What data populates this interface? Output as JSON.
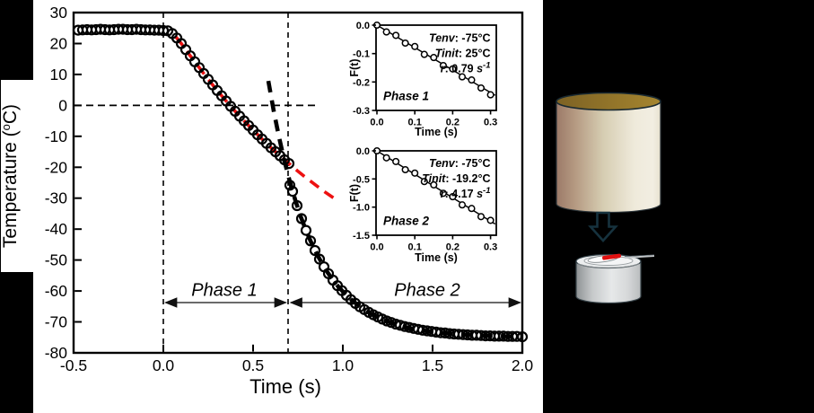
{
  "colors": {
    "background": "#000000",
    "panel": "#ffffff",
    "data_stroke": "#000000",
    "phase1_model_red": "#ed1111",
    "phase2_model_black": "#000000",
    "diagram_outline": "#16323e",
    "sample_red": "#e01010"
  },
  "chart_data": [
    {
      "id": "main",
      "type": "scatter",
      "xlabel": "Time (s)",
      "ylabel": "Temperature (°C)",
      "ylabel_parts": {
        "pre": "Temperature (",
        "sup": "o",
        "post": "C)"
      },
      "xlim": [
        -0.5,
        2.0
      ],
      "ylim": [
        -80,
        30
      ],
      "grid": false,
      "x_tick_values": [
        -0.5,
        0,
        0.5,
        1,
        1.5,
        2
      ],
      "x_tick_labels": [
        "-0.5",
        "0.0",
        "0.5",
        "1.0",
        "1.5",
        "2.0"
      ],
      "y_tick_values": [
        30,
        20,
        10,
        0,
        -10,
        -20,
        -30,
        -40,
        -50,
        -60,
        -70,
        -80
      ],
      "y_tick_labels": [
        "30",
        "20",
        "10",
        "0",
        "-10",
        "-20",
        "-30",
        "-40",
        "-50",
        "-60",
        "-70",
        "-80"
      ],
      "reference_lines": {
        "vertical_t": [
          0,
          0.695
        ],
        "horizontal_T": 0,
        "horizontal_extent": [
          -0.5,
          0.85
        ]
      },
      "phase_labels": [
        "Phase 1",
        "Phase 2"
      ],
      "phase_spans": [
        {
          "from": 0,
          "to": 0.695,
          "y": -63.8
        },
        {
          "from": 0.695,
          "to": 2.0,
          "y": -63.8
        }
      ],
      "series": [
        {
          "name": "measured-temperature",
          "marker": "open-circle",
          "color": "#000000",
          "points": [
            [
              -0.475,
              24.3
            ],
            [
              -0.45,
              24.4
            ],
            [
              -0.425,
              24.5
            ],
            [
              -0.4,
              24.4
            ],
            [
              -0.375,
              24.5
            ],
            [
              -0.35,
              24.6
            ],
            [
              -0.325,
              24.5
            ],
            [
              -0.3,
              24.4
            ],
            [
              -0.275,
              24.5
            ],
            [
              -0.25,
              24.6
            ],
            [
              -0.225,
              24.6
            ],
            [
              -0.2,
              24.5
            ],
            [
              -0.175,
              24.5
            ],
            [
              -0.15,
              24.6
            ],
            [
              -0.125,
              24.5
            ],
            [
              -0.1,
              24.4
            ],
            [
              -0.075,
              24.4
            ],
            [
              -0.05,
              24.3
            ],
            [
              -0.025,
              24.3
            ],
            [
              0,
              24.2
            ],
            [
              0.025,
              24.1
            ],
            [
              0.05,
              23.2
            ],
            [
              0.075,
              21.8
            ],
            [
              0.1,
              20
            ],
            [
              0.125,
              18
            ],
            [
              0.15,
              16
            ],
            [
              0.175,
              14.1
            ],
            [
              0.2,
              12.2
            ],
            [
              0.225,
              10.3
            ],
            [
              0.25,
              8.4
            ],
            [
              0.275,
              6.6
            ],
            [
              0.3,
              4.8
            ],
            [
              0.325,
              3.1
            ],
            [
              0.35,
              1.4
            ],
            [
              0.375,
              -0.3
            ],
            [
              0.4,
              -1.9
            ],
            [
              0.425,
              -3.5
            ],
            [
              0.45,
              -5
            ],
            [
              0.475,
              -6.5
            ],
            [
              0.5,
              -8
            ],
            [
              0.525,
              -9.5
            ],
            [
              0.55,
              -10.9
            ],
            [
              0.575,
              -12.3
            ],
            [
              0.6,
              -13.7
            ],
            [
              0.625,
              -15
            ],
            [
              0.65,
              -16.3
            ],
            [
              0.675,
              -17.6
            ],
            [
              0.7,
              -18.8
            ],
            [
              0.705,
              -25.8
            ],
            [
              0.72,
              -27.8
            ],
            [
              0.745,
              -32.4
            ],
            [
              0.77,
              -36.6
            ],
            [
              0.795,
              -40.4
            ],
            [
              0.82,
              -43.8
            ],
            [
              0.845,
              -46.9
            ],
            [
              0.87,
              -49.7
            ],
            [
              0.895,
              -52.2
            ],
            [
              0.92,
              -54.4
            ],
            [
              0.945,
              -56.5
            ],
            [
              0.97,
              -58.3
            ],
            [
              0.995,
              -59.9
            ],
            [
              1.02,
              -61.4
            ],
            [
              1.045,
              -62.8
            ],
            [
              1.07,
              -64
            ],
            [
              1.095,
              -65.1
            ],
            [
              1.12,
              -66
            ],
            [
              1.145,
              -66.9
            ],
            [
              1.17,
              -67.7
            ],
            [
              1.195,
              -68.4
            ],
            [
              1.22,
              -69.1
            ],
            [
              1.245,
              -69.7
            ],
            [
              1.27,
              -70.2
            ],
            [
              1.295,
              -70.7
            ],
            [
              1.32,
              -71.1
            ],
            [
              1.345,
              -71.5
            ],
            [
              1.37,
              -71.8
            ],
            [
              1.395,
              -72.1
            ],
            [
              1.42,
              -72.4
            ],
            [
              1.445,
              -72.7
            ],
            [
              1.47,
              -72.9
            ],
            [
              1.495,
              -73.1
            ],
            [
              1.52,
              -73.3
            ],
            [
              1.545,
              -73.5
            ],
            [
              1.57,
              -73.6
            ],
            [
              1.595,
              -73.8
            ],
            [
              1.62,
              -73.9
            ],
            [
              1.645,
              -74
            ],
            [
              1.67,
              -74.1
            ],
            [
              1.695,
              -74.2
            ],
            [
              1.72,
              -74.3
            ],
            [
              1.745,
              -74.3
            ],
            [
              1.77,
              -74.4
            ],
            [
              1.795,
              -74.5
            ],
            [
              1.82,
              -74.5
            ],
            [
              1.845,
              -74.6
            ],
            [
              1.87,
              -74.6
            ],
            [
              1.895,
              -74.6
            ],
            [
              1.92,
              -74.7
            ],
            [
              1.945,
              -74.7
            ],
            [
              1.97,
              -74.7
            ],
            [
              2,
              -74.8
            ]
          ]
        },
        {
          "name": "phase1-model-extrapolation",
          "style": "dashed",
          "color": "#ed1111",
          "points": [
            [
              0.07,
              22.1
            ],
            [
              0.1,
              20
            ],
            [
              0.15,
              16
            ],
            [
              0.2,
              12.2
            ],
            [
              0.25,
              8.4
            ],
            [
              0.3,
              4.8
            ],
            [
              0.35,
              1.4
            ],
            [
              0.4,
              -1.9
            ],
            [
              0.45,
              -5
            ],
            [
              0.5,
              -8
            ],
            [
              0.55,
              -10.9
            ],
            [
              0.6,
              -13.7
            ],
            [
              0.65,
              -16.3
            ],
            [
              0.7,
              -18.8
            ],
            [
              0.75,
              -21.3
            ],
            [
              0.8,
              -23.6
            ],
            [
              0.85,
              -25.8
            ],
            [
              0.9,
              -28
            ],
            [
              0.95,
              -30
            ]
          ]
        },
        {
          "name": "phase2-model-extrapolation",
          "style": "dashed",
          "color": "#000000",
          "points": [
            [
              0.585,
              7.9
            ],
            [
              0.615,
              -1.8
            ],
            [
              0.645,
              -10.4
            ],
            [
              0.675,
              -18
            ],
            [
              0.705,
              -24.7
            ],
            [
              0.735,
              -30.6
            ],
            [
              0.765,
              -35.9
            ],
            [
              0.795,
              -40.4
            ],
            [
              0.825,
              -44.5
            ],
            [
              0.855,
              -48
            ],
            [
              0.885,
              -51.2
            ],
            [
              0.915,
              -54
            ],
            [
              0.945,
              -56.5
            ],
            [
              0.975,
              -58.6
            ],
            [
              1.005,
              -60.5
            ],
            [
              1.05,
              -63
            ],
            [
              1.1,
              -65.2
            ],
            [
              1.15,
              -67.1
            ],
            [
              1.2,
              -68.6
            ],
            [
              1.25,
              -69.8
            ],
            [
              1.3,
              -70.9
            ],
            [
              1.35,
              -71.7
            ],
            [
              1.4,
              -72.3
            ],
            [
              1.45,
              -72.8
            ],
            [
              1.5,
              -73.2
            ],
            [
              1.55,
              -73.5
            ],
            [
              1.6,
              -73.8
            ],
            [
              1.65,
              -74
            ],
            [
              1.7,
              -74.2
            ],
            [
              1.75,
              -74.35
            ],
            [
              1.8,
              -74.45
            ],
            [
              1.85,
              -74.55
            ],
            [
              1.9,
              -74.65
            ],
            [
              1.95,
              -74.7
            ],
            [
              2,
              -74.77
            ]
          ]
        }
      ]
    },
    {
      "id": "inset-phase1",
      "type": "scatter",
      "xlabel": "Time (s)",
      "ylabel": "F(t)",
      "phase_label": "Phase 1",
      "xlim": [
        0,
        0.315
      ],
      "ylim": [
        -0.3,
        0
      ],
      "x_tick_values": [
        0,
        0.1,
        0.2,
        0.3
      ],
      "x_tick_labels": [
        "0.0",
        "0.1",
        "0.2",
        "0.3"
      ],
      "y_tick_values": [
        0,
        -0.1,
        -0.2,
        -0.3
      ],
      "y_tick_labels": [
        "0.0",
        "-0.1",
        "-0.2",
        "-0.3"
      ],
      "annotations": [
        {
          "label": "Tenv",
          "value": "-75°C"
        },
        {
          "label": "Tinit",
          "value": " 25°C"
        },
        {
          "label": "r",
          "value": "0.79",
          "unit": " s",
          "sup": "-1"
        }
      ],
      "fit_line": [
        [
          0,
          0
        ],
        [
          0.312,
          -0.2465
        ]
      ],
      "points": [
        [
          0,
          0
        ],
        [
          0.025,
          -0.024
        ],
        [
          0.05,
          -0.036
        ],
        [
          0.075,
          -0.063
        ],
        [
          0.1,
          -0.075
        ],
        [
          0.125,
          -0.103
        ],
        [
          0.15,
          -0.114
        ],
        [
          0.175,
          -0.142
        ],
        [
          0.2,
          -0.154
        ],
        [
          0.225,
          -0.182
        ],
        [
          0.25,
          -0.193
        ],
        [
          0.275,
          -0.221
        ],
        [
          0.3,
          -0.245
        ]
      ]
    },
    {
      "id": "inset-phase2",
      "type": "scatter",
      "xlabel": "Time (s)",
      "ylabel": "F(t)",
      "phase_label": "Phase 2",
      "xlim": [
        0,
        0.315
      ],
      "ylim": [
        -1.5,
        0
      ],
      "x_tick_values": [
        0,
        0.1,
        0.2,
        0.3
      ],
      "x_tick_labels": [
        "0.0",
        "0.1",
        "0.2",
        "0.3"
      ],
      "y_tick_values": [
        0,
        -0.5,
        -1,
        -1.5
      ],
      "y_tick_labels": [
        "0.0",
        "-0.5",
        "-1.0",
        "-1.5"
      ],
      "annotations": [
        {
          "label": "Tenv",
          "value": "-75°C"
        },
        {
          "label": "Tinit",
          "value": "-19.2°C"
        },
        {
          "label": "r",
          "value": "4.17",
          "unit": " s",
          "sup": "-1"
        }
      ],
      "fit_line": [
        [
          0,
          0
        ],
        [
          0.312,
          -1.301
        ]
      ],
      "points": [
        [
          0,
          0
        ],
        [
          0.025,
          -0.125
        ],
        [
          0.05,
          -0.19
        ],
        [
          0.075,
          -0.335
        ],
        [
          0.1,
          -0.395
        ],
        [
          0.125,
          -0.545
        ],
        [
          0.15,
          -0.605
        ],
        [
          0.175,
          -0.755
        ],
        [
          0.2,
          -0.815
        ],
        [
          0.225,
          -0.96
        ],
        [
          0.25,
          -1.025
        ],
        [
          0.275,
          -1.17
        ],
        [
          0.3,
          -1.235
        ]
      ]
    }
  ],
  "diagram": {
    "large_cylinder": {
      "body_gradient": [
        [
          0,
          "#9c7a68"
        ],
        [
          0.18,
          "#b59a82"
        ],
        [
          0.45,
          "#d6cdb2"
        ],
        [
          0.75,
          "#efeadb"
        ],
        [
          0.93,
          "#f2eee2"
        ],
        [
          1,
          "#e7e1cf"
        ]
      ],
      "top_gradient": [
        [
          0,
          "#7d6224"
        ],
        [
          1,
          "#a5852f"
        ]
      ]
    },
    "arrow": {
      "fill": "#000000",
      "outline": "#16323e"
    },
    "small_cylinder": {
      "body_gradient": [
        [
          0,
          "#8e9294"
        ],
        [
          0.25,
          "#c6c9ca"
        ],
        [
          0.55,
          "#e6e8e9"
        ],
        [
          0.8,
          "#d6d8d9"
        ],
        [
          1,
          "#b9bcbe"
        ]
      ],
      "top_fill": "#eceeef",
      "sample_color": "#e01010"
    }
  }
}
